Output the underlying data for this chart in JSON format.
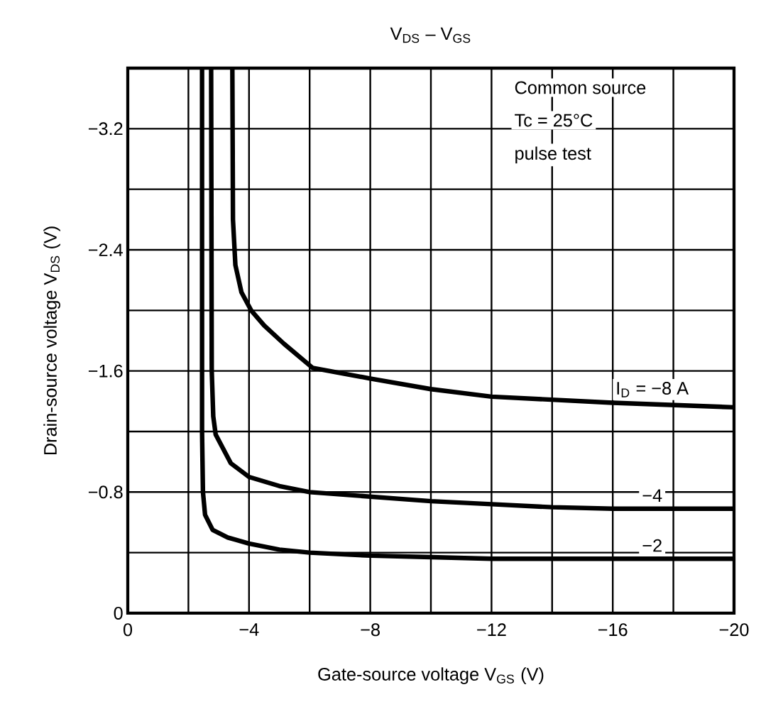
{
  "chart_data": {
    "type": "line",
    "title": "V$_{DS}$ – V$_{GS}$",
    "xlabel": "Gate-source voltage   V$_{GS}$   (V)",
    "ylabel": "Drain-source voltage   V$_{DS}$   (V)",
    "xlim": [
      0,
      -20
    ],
    "ylim": [
      0,
      -3.6
    ],
    "grid": true,
    "xticks": [
      {
        "value": 0,
        "label": "0"
      },
      {
        "value": -2,
        "label": null
      },
      {
        "value": -4,
        "label": "−4"
      },
      {
        "value": -6,
        "label": null
      },
      {
        "value": -8,
        "label": "−8"
      },
      {
        "value": -10,
        "label": null
      },
      {
        "value": -12,
        "label": "−12"
      },
      {
        "value": -14,
        "label": null
      },
      {
        "value": -16,
        "label": "−16"
      },
      {
        "value": -18,
        "label": null
      },
      {
        "value": -20,
        "label": "−20"
      }
    ],
    "yticks": [
      {
        "value": 0,
        "label": "0"
      },
      {
        "value": -0.4,
        "label": null
      },
      {
        "value": -0.8,
        "label": "−0.8"
      },
      {
        "value": -1.2,
        "label": null
      },
      {
        "value": -1.6,
        "label": "−1.6"
      },
      {
        "value": -2.0,
        "label": null
      },
      {
        "value": -2.4,
        "label": "−2.4"
      },
      {
        "value": -2.8,
        "label": null
      },
      {
        "value": -3.2,
        "label": "−3.2"
      }
    ],
    "annotations": [
      "Common source",
      "Tc = 25°C",
      "pulse test"
    ],
    "series": [
      {
        "name": "I$_{D}$ = −8 A",
        "color": "#000000",
        "x": [
          -3.45,
          -3.47,
          -3.55,
          -3.75,
          -4.07,
          -4.5,
          -5.15,
          -6.1,
          -8,
          -10,
          -12,
          -16,
          -20
        ],
        "values": [
          -3.6,
          -2.6,
          -2.3,
          -2.12,
          -2.0,
          -1.9,
          -1.78,
          -1.62,
          -1.55,
          -1.48,
          -1.43,
          -1.39,
          -1.36
        ]
      },
      {
        "name": "−4",
        "color": "#000000",
        "x": [
          -2.75,
          -2.77,
          -2.82,
          -2.9,
          -3.4,
          -4,
          -5,
          -6,
          -8,
          -10,
          -12,
          -14,
          -16,
          -20
        ],
        "values": [
          -3.6,
          -1.6,
          -1.3,
          -1.18,
          -0.99,
          -0.9,
          -0.84,
          -0.8,
          -0.77,
          -0.74,
          -0.72,
          -0.7,
          -0.69,
          -0.69
        ]
      },
      {
        "name": "−2",
        "color": "#000000",
        "x": [
          -2.45,
          -2.45,
          -2.48,
          -2.55,
          -2.8,
          -3.3,
          -4,
          -5,
          -6,
          -8,
          -10,
          -12,
          -16,
          -20
        ],
        "values": [
          -3.6,
          -1.2,
          -0.8,
          -0.65,
          -0.55,
          -0.5,
          -0.46,
          -0.42,
          -0.4,
          -0.38,
          -0.37,
          -0.36,
          -0.36,
          -0.36
        ]
      }
    ]
  }
}
